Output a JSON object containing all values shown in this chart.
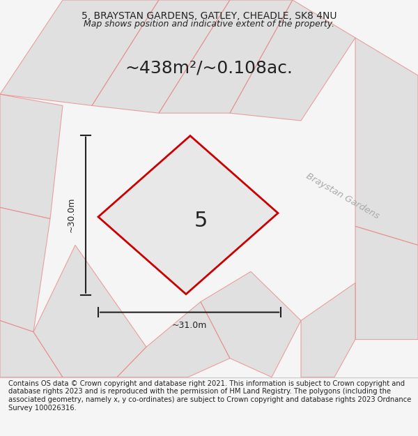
{
  "title_line1": "5, BRAYSTAN GARDENS, GATLEY, CHEADLE, SK8 4NU",
  "title_line2": "Map shows position and indicative extent of the property.",
  "area_text": "~438m²/~0.108ac.",
  "plot_number": "5",
  "dim_width": "~31.0m",
  "dim_height": "~30.0m",
  "street_label": "Braystan Gardens",
  "footer_text": "Contains OS data © Crown copyright and database right 2021. This information is subject to Crown copyright and database rights 2023 and is reproduced with the permission of HM Land Registry. The polygons (including the associated geometry, namely x, y co-ordinates) are subject to Crown copyright and database rights 2023 Ordnance Survey 100026316.",
  "bg_color": "#f5f5f5",
  "map_bg": "#f0f0f0",
  "plot_fill": "#e8e8e8",
  "plot_edge": "#cc0000",
  "building_fill": "#d8d8d8",
  "building_edge": "#cccccc",
  "road_edge": "#e88080",
  "footer_bg": "#ffffff",
  "dim_line_color": "#222222"
}
